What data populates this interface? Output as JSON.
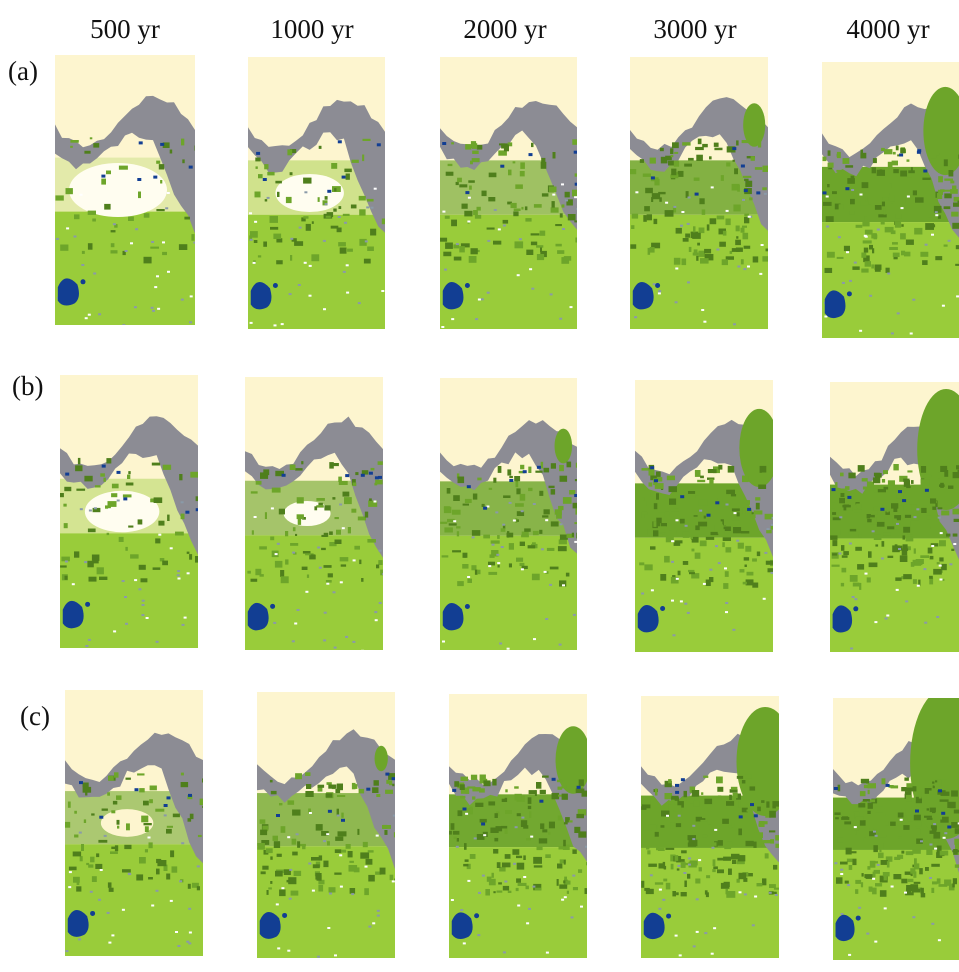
{
  "columns": [
    "500 yr",
    "1000 yr",
    "2000 yr",
    "3000 yr",
    "4000 yr"
  ],
  "rows": [
    "(a)",
    "(b)",
    "(c)"
  ]
}
